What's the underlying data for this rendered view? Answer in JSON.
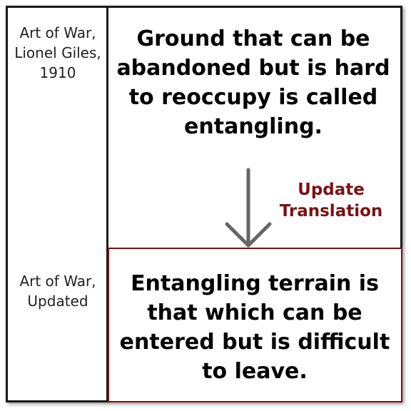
{
  "labels": {
    "original": "Art of War, Lionel Giles, 1910",
    "updated": "Art of War, Updated"
  },
  "original_text": "Ground that can be abandoned but is hard to reoccupy is called entangling.",
  "updated_text": "Entangling terrain is that which can be entered but is difficult to leave.",
  "arrow_label": "Update Translation",
  "icons": {
    "arrow": "arrow-down-icon"
  },
  "colors": {
    "border": "#1a1a1a",
    "accent": "#7b1212",
    "arrow": "#666666"
  }
}
